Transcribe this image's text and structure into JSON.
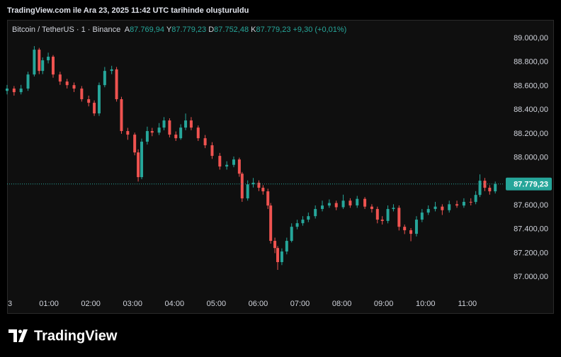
{
  "header": {
    "caption": "TradingView.com ile Ara 23, 2025 11:42 UTC tarihinde oluşturuldu"
  },
  "chart_data": {
    "type": "candlestick",
    "legend": {
      "symbol": "Bitcoin / TetherUS · 1 · Binance",
      "open_label": "A",
      "open": "87.769,94",
      "high_label": "Y",
      "high": "87.779,23",
      "low_label": "D",
      "low": "87.752,48",
      "close_label": "K",
      "close": "87.779,23",
      "change": "+9,30 (+0,01%)"
    },
    "up_color": "#26a69a",
    "down_color": "#ef5350",
    "x": [
      0,
      10,
      20,
      30,
      39,
      46,
      51,
      59,
      66,
      76,
      86,
      96,
      107,
      117,
      125,
      132,
      140,
      150,
      157,
      164,
      173,
      183,
      188,
      193,
      201,
      208,
      218,
      225,
      233,
      242,
      249,
      256,
      264,
      274,
      284,
      294,
      305,
      315,
      325,
      333,
      337,
      345,
      353,
      361,
      367,
      374,
      378,
      384,
      388,
      394,
      401,
      408,
      416,
      424,
      432,
      442,
      452,
      462,
      472,
      482,
      492,
      502,
      513,
      523,
      531,
      538,
      546,
      554,
      562,
      570,
      579,
      587,
      595,
      604,
      614,
      624,
      634,
      645,
      655,
      665,
      672,
      678,
      685,
      692,
      700
    ],
    "open": [
      88560,
      88579,
      88549,
      88579,
      88697,
      88905,
      88727,
      88816,
      88846,
      88697,
      88638,
      88608,
      88579,
      88490,
      88460,
      88371,
      88608,
      88727,
      88740,
      88490,
      88223,
      88193,
      88044,
      87837,
      88134,
      88223,
      88210,
      88252,
      88312,
      88193,
      88163,
      88252,
      88312,
      88252,
      88163,
      88104,
      88015,
      87926,
      87940,
      87985,
      87866,
      87659,
      87777,
      87790,
      87748,
      87718,
      87599,
      87303,
      87243,
      87125,
      87214,
      87303,
      87421,
      87451,
      87481,
      87510,
      87570,
      87599,
      87620,
      87585,
      87640,
      87600,
      87655,
      87590,
      87570,
      87481,
      87470,
      87570,
      87580,
      87421,
      87392,
      87362,
      87481,
      87540,
      87570,
      87590,
      87560,
      87610,
      87599,
      87630,
      87629,
      87688,
      87807,
      87748,
      87718
    ],
    "high": [
      88610,
      88600,
      88610,
      88720,
      88935,
      88920,
      88840,
      88880,
      88860,
      88720,
      88660,
      88630,
      88600,
      88520,
      88480,
      88630,
      88760,
      88770,
      88760,
      88510,
      88250,
      88210,
      88070,
      88160,
      88260,
      88250,
      88290,
      88340,
      88330,
      88220,
      88280,
      88370,
      88340,
      88270,
      88190,
      88130,
      88040,
      87970,
      88010,
      88000,
      87880,
      87810,
      87830,
      87810,
      87770,
      87740,
      87620,
      87330,
      87260,
      87240,
      87330,
      87450,
      87480,
      87510,
      87540,
      87600,
      87640,
      87650,
      87640,
      87690,
      87660,
      87680,
      87670,
      87610,
      87590,
      87510,
      87600,
      87610,
      87600,
      87440,
      87410,
      87510,
      87570,
      87600,
      87630,
      87610,
      87640,
      87640,
      87660,
      87660,
      87720,
      87860,
      87830,
      87770,
      87800
    ],
    "low": [
      88530,
      88520,
      88530,
      88560,
      88680,
      88700,
      88700,
      88790,
      88670,
      88610,
      88580,
      88550,
      88470,
      88430,
      88350,
      88350,
      88590,
      88700,
      88470,
      88200,
      88150,
      88020,
      87800,
      87820,
      88110,
      88180,
      88190,
      88230,
      88170,
      88140,
      88150,
      88230,
      88230,
      88140,
      88080,
      87990,
      87900,
      87900,
      87920,
      87840,
      87630,
      87640,
      87750,
      87720,
      87690,
      87570,
      87280,
      87200,
      87060,
      87100,
      87190,
      87290,
      87400,
      87430,
      87460,
      87490,
      87550,
      87580,
      87560,
      87570,
      87580,
      87580,
      87570,
      87540,
      87450,
      87440,
      87450,
      87550,
      87390,
      87360,
      87300,
      87340,
      87460,
      87520,
      87550,
      87520,
      87540,
      87580,
      87580,
      87600,
      87610,
      87670,
      87720,
      87690,
      87700
    ],
    "close": [
      88579,
      88549,
      88579,
      88697,
      88905,
      88727,
      88816,
      88846,
      88697,
      88638,
      88608,
      88579,
      88490,
      88460,
      88371,
      88608,
      88727,
      88740,
      88490,
      88223,
      88193,
      88044,
      87837,
      88134,
      88223,
      88210,
      88252,
      88312,
      88193,
      88163,
      88252,
      88312,
      88252,
      88163,
      88104,
      88015,
      87926,
      87940,
      87985,
      87866,
      87659,
      87777,
      87790,
      87748,
      87718,
      87599,
      87303,
      87243,
      87125,
      87214,
      87303,
      87421,
      87451,
      87481,
      87510,
      87570,
      87599,
      87620,
      87585,
      87640,
      87600,
      87655,
      87590,
      87570,
      87481,
      87470,
      87570,
      87580,
      87421,
      87392,
      87362,
      87481,
      87540,
      87570,
      87590,
      87560,
      87610,
      87599,
      87630,
      87629,
      87688,
      87807,
      87748,
      87718,
      87779.23
    ],
    "last_price": {
      "value": 87779.23,
      "label": "87.779,23"
    },
    "xlim": [
      0,
      713
    ],
    "xticks": [
      {
        "value": 0,
        "label": "3"
      },
      {
        "value": 60,
        "label": "01:00"
      },
      {
        "value": 120,
        "label": "02:00"
      },
      {
        "value": 180,
        "label": "03:00"
      },
      {
        "value": 240,
        "label": "04:00"
      },
      {
        "value": 300,
        "label": "05:00"
      },
      {
        "value": 360,
        "label": "06:00"
      },
      {
        "value": 420,
        "label": "07:00"
      },
      {
        "value": 480,
        "label": "08:00"
      },
      {
        "value": 540,
        "label": "09:00"
      },
      {
        "value": 600,
        "label": "10:00"
      },
      {
        "value": 660,
        "label": "11:00"
      }
    ],
    "ylim": [
      86870,
      89155
    ],
    "yticks": [
      {
        "value": 87000,
        "label": "87.000,00"
      },
      {
        "value": 87200,
        "label": "87.200,00"
      },
      {
        "value": 87400,
        "label": "87.400,00"
      },
      {
        "value": 87600,
        "label": "87.600,00"
      },
      {
        "value": 87800,
        "label": "87.800,00"
      },
      {
        "value": 88000,
        "label": "88.000,00"
      },
      {
        "value": 88200,
        "label": "88.200,00"
      },
      {
        "value": 88400,
        "label": "88.400,00"
      },
      {
        "value": 88600,
        "label": "88.600,00"
      },
      {
        "value": 88800,
        "label": "88.800,00"
      },
      {
        "value": 89000,
        "label": "89.000,00"
      }
    ],
    "grid": false
  },
  "footer": {
    "brand": "TradingView"
  }
}
